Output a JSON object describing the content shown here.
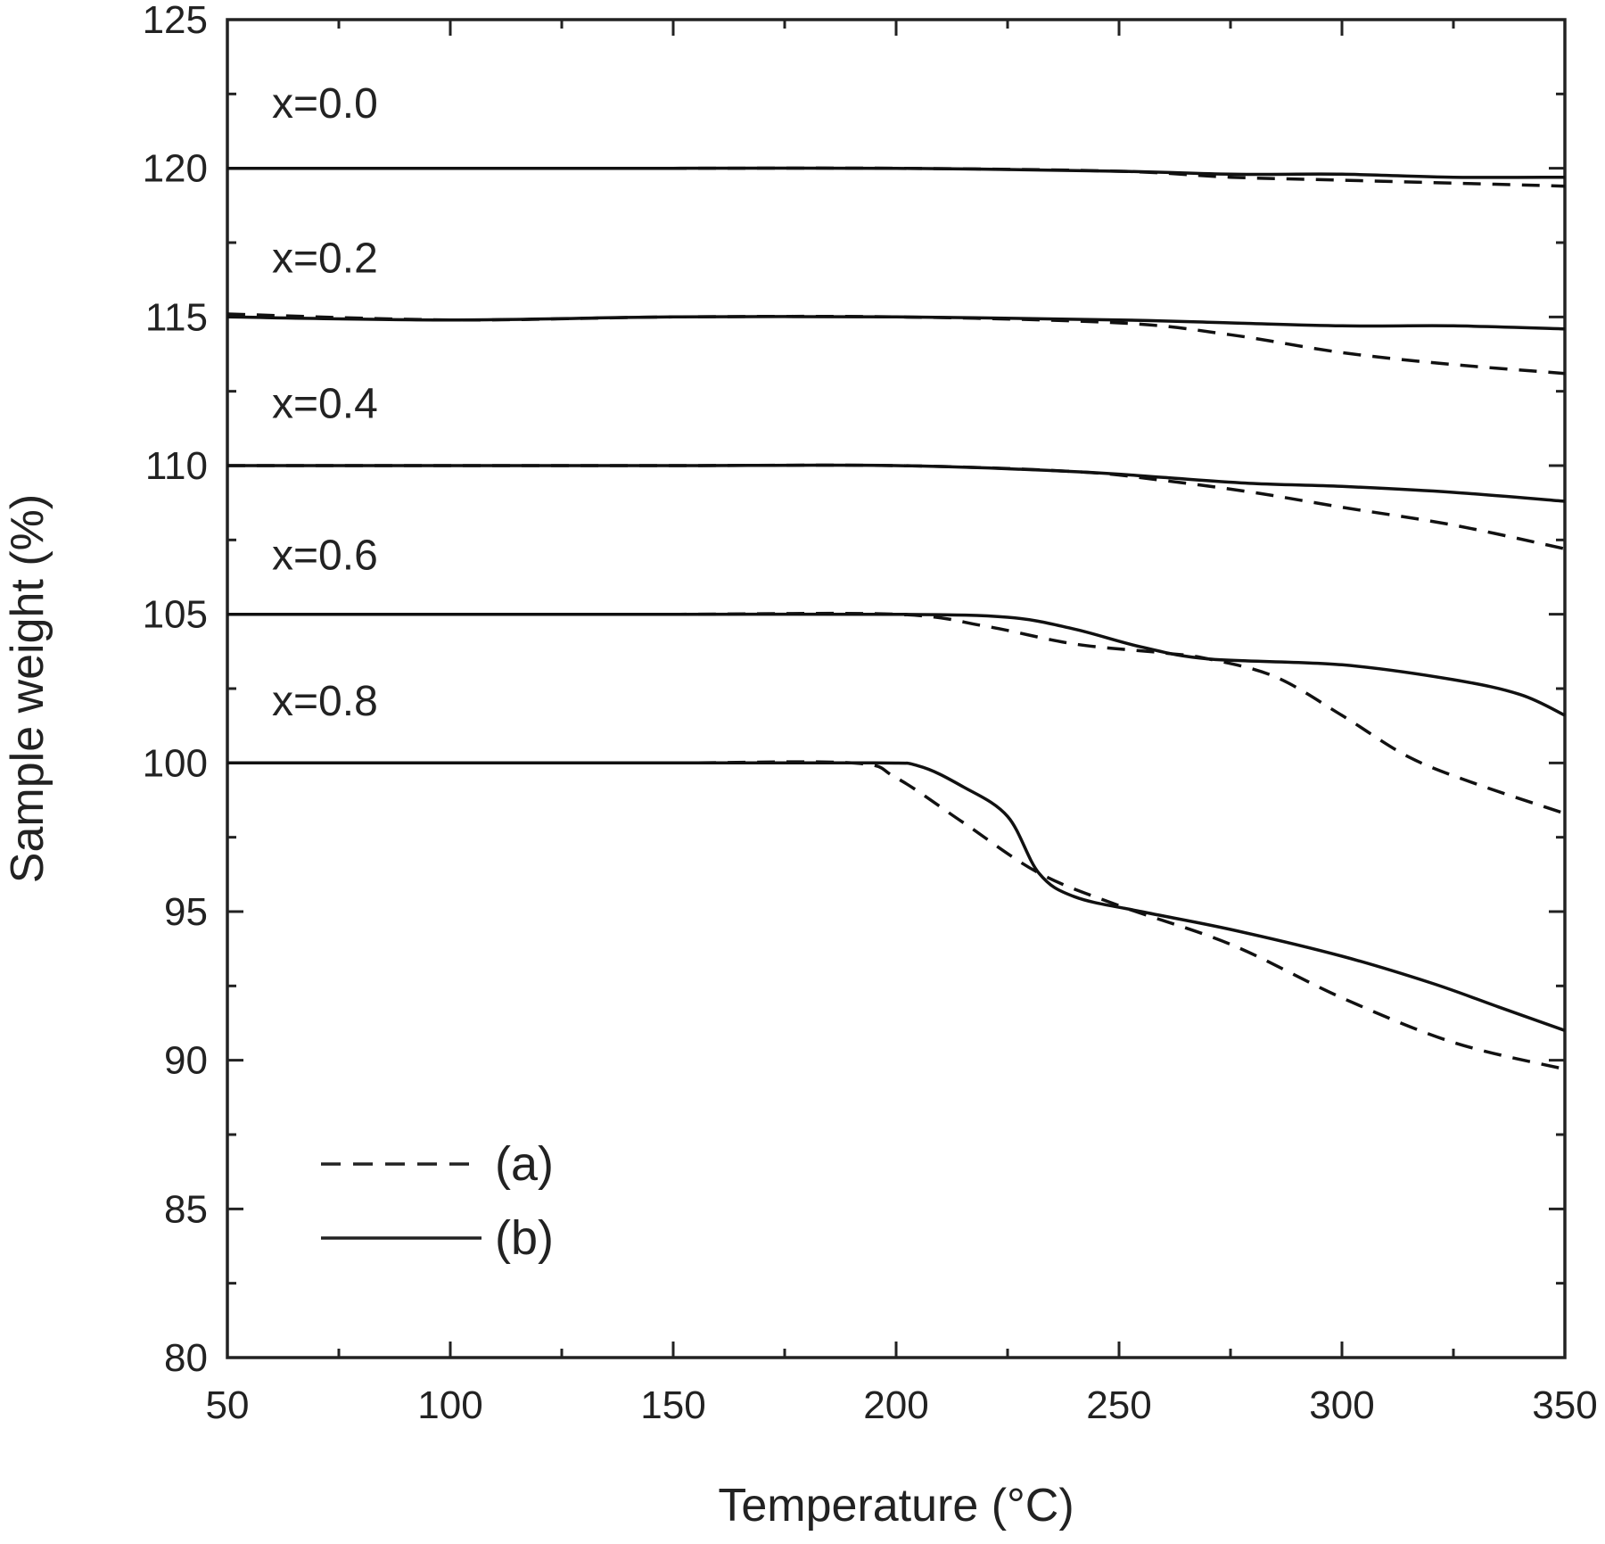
{
  "chart_data": {
    "type": "line",
    "xlabel": "Temperature (°C)",
    "ylabel": "Sample weight (%)",
    "xlim": [
      50,
      350
    ],
    "ylim": [
      80,
      125
    ],
    "xticks": [
      50,
      100,
      150,
      200,
      250,
      300,
      350
    ],
    "yticks": [
      80,
      85,
      90,
      95,
      100,
      105,
      110,
      115,
      120,
      125
    ],
    "grid": false,
    "legend": {
      "placement": "bottom-left",
      "entries": [
        {
          "label": "(a)",
          "style": "dashed"
        },
        {
          "label": "(b)",
          "style": "solid"
        }
      ]
    },
    "curve_labels": [
      {
        "text": "x=0.0",
        "x": 60,
        "y": 121.7
      },
      {
        "text": "x=0.2",
        "x": 60,
        "y": 116.5
      },
      {
        "text": "x=0.4",
        "x": 60,
        "y": 111.6
      },
      {
        "text": "x=0.6",
        "x": 60,
        "y": 106.5
      },
      {
        "text": "x=0.8",
        "x": 60,
        "y": 101.6
      }
    ],
    "series": [
      {
        "group": "x=0.0",
        "style": "dashed",
        "points": [
          [
            50,
            120.0
          ],
          [
            100,
            120.0
          ],
          [
            150,
            120.0
          ],
          [
            200,
            120.0
          ],
          [
            250,
            119.9
          ],
          [
            275,
            119.7
          ],
          [
            300,
            119.6
          ],
          [
            325,
            119.5
          ],
          [
            350,
            119.4
          ]
        ]
      },
      {
        "group": "x=0.0",
        "style": "solid",
        "points": [
          [
            50,
            120.0
          ],
          [
            100,
            120.0
          ],
          [
            150,
            120.0
          ],
          [
            200,
            120.0
          ],
          [
            250,
            119.9
          ],
          [
            275,
            119.8
          ],
          [
            300,
            119.8
          ],
          [
            325,
            119.7
          ],
          [
            350,
            119.7
          ]
        ]
      },
      {
        "group": "x=0.2",
        "style": "dashed",
        "points": [
          [
            50,
            115.1
          ],
          [
            100,
            114.9
          ],
          [
            150,
            115.0
          ],
          [
            200,
            115.0
          ],
          [
            250,
            114.8
          ],
          [
            275,
            114.4
          ],
          [
            300,
            113.8
          ],
          [
            325,
            113.4
          ],
          [
            350,
            113.1
          ]
        ]
      },
      {
        "group": "x=0.2",
        "style": "solid",
        "points": [
          [
            50,
            115.0
          ],
          [
            100,
            114.9
          ],
          [
            150,
            115.0
          ],
          [
            200,
            115.0
          ],
          [
            250,
            114.9
          ],
          [
            275,
            114.8
          ],
          [
            300,
            114.7
          ],
          [
            325,
            114.7
          ],
          [
            350,
            114.6
          ]
        ]
      },
      {
        "group": "x=0.4",
        "style": "dashed",
        "points": [
          [
            50,
            110.0
          ],
          [
            100,
            110.0
          ],
          [
            150,
            110.0
          ],
          [
            200,
            110.0
          ],
          [
            240,
            109.8
          ],
          [
            260,
            109.5
          ],
          [
            280,
            109.1
          ],
          [
            300,
            108.6
          ],
          [
            325,
            108.0
          ],
          [
            350,
            107.2
          ]
        ]
      },
      {
        "group": "x=0.4",
        "style": "solid",
        "points": [
          [
            50,
            110.0
          ],
          [
            100,
            110.0
          ],
          [
            150,
            110.0
          ],
          [
            200,
            110.0
          ],
          [
            240,
            109.8
          ],
          [
            260,
            109.6
          ],
          [
            280,
            109.4
          ],
          [
            300,
            109.3
          ],
          [
            325,
            109.1
          ],
          [
            350,
            108.8
          ]
        ]
      },
      {
        "group": "x=0.6",
        "style": "dashed",
        "points": [
          [
            50,
            105.0
          ],
          [
            100,
            105.0
          ],
          [
            150,
            105.0
          ],
          [
            200,
            105.0
          ],
          [
            220,
            104.6
          ],
          [
            240,
            104.0
          ],
          [
            260,
            103.7
          ],
          [
            270,
            103.5
          ],
          [
            285,
            102.9
          ],
          [
            300,
            101.6
          ],
          [
            315,
            100.2
          ],
          [
            330,
            99.3
          ],
          [
            350,
            98.3
          ]
        ]
      },
      {
        "group": "x=0.6",
        "style": "solid",
        "points": [
          [
            50,
            105.0
          ],
          [
            100,
            105.0
          ],
          [
            150,
            105.0
          ],
          [
            200,
            105.0
          ],
          [
            225,
            104.9
          ],
          [
            240,
            104.5
          ],
          [
            255,
            103.9
          ],
          [
            270,
            103.5
          ],
          [
            300,
            103.3
          ],
          [
            325,
            102.8
          ],
          [
            340,
            102.3
          ],
          [
            350,
            101.6
          ]
        ]
      },
      {
        "group": "x=0.8",
        "style": "dashed",
        "points": [
          [
            50,
            100.0
          ],
          [
            100,
            100.0
          ],
          [
            150,
            100.0
          ],
          [
            190,
            100.0
          ],
          [
            200,
            99.5
          ],
          [
            215,
            98.0
          ],
          [
            232,
            96.3
          ],
          [
            250,
            95.2
          ],
          [
            275,
            93.9
          ],
          [
            300,
            92.1
          ],
          [
            325,
            90.6
          ],
          [
            350,
            89.7
          ]
        ]
      },
      {
        "group": "x=0.8",
        "style": "solid",
        "points": [
          [
            50,
            100.0
          ],
          [
            100,
            100.0
          ],
          [
            150,
            100.0
          ],
          [
            195,
            100.0
          ],
          [
            205,
            99.9
          ],
          [
            215,
            99.2
          ],
          [
            225,
            98.2
          ],
          [
            232,
            96.3
          ],
          [
            240,
            95.5
          ],
          [
            255,
            95.0
          ],
          [
            275,
            94.4
          ],
          [
            300,
            93.5
          ],
          [
            320,
            92.6
          ],
          [
            335,
            91.8
          ],
          [
            350,
            91.0
          ]
        ]
      }
    ]
  }
}
